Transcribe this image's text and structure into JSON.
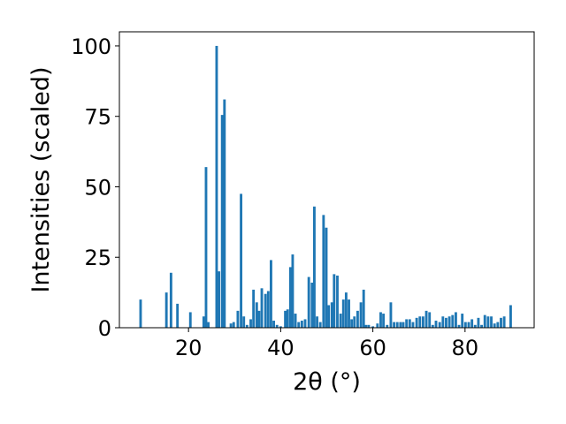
{
  "chart_data": {
    "type": "bar",
    "title": "",
    "xlabel": "2θ (°)",
    "ylabel": "Intensities (scaled)",
    "xlim": [
      5,
      95
    ],
    "ylim": [
      0,
      105
    ],
    "xticks": [
      20,
      40,
      60,
      80
    ],
    "yticks": [
      0,
      25,
      50,
      75,
      100
    ],
    "grid": false,
    "bar_color": "#1f77b4",
    "bar_width": 0.55,
    "x": [
      9.6,
      15.2,
      16.2,
      17.6,
      20.4,
      23.3,
      23.8,
      24.3,
      26.1,
      26.6,
      27.3,
      27.8,
      29.2,
      29.8,
      30.7,
      31.4,
      32.0,
      32.7,
      33.5,
      34.1,
      34.8,
      35.3,
      35.9,
      36.7,
      37.3,
      37.9,
      38.5,
      39.2,
      40.0,
      41.0,
      41.5,
      42.1,
      42.6,
      43.2,
      43.9,
      44.6,
      45.3,
      46.1,
      46.8,
      47.3,
      47.9,
      48.6,
      49.3,
      49.9,
      50.4,
      51.1,
      51.6,
      52.3,
      53.0,
      53.6,
      54.2,
      54.8,
      55.4,
      56.0,
      56.7,
      57.4,
      58.0,
      58.5,
      59.1,
      60.0,
      61.0,
      61.7,
      62.3,
      63.1,
      63.9,
      64.6,
      65.3,
      66.0,
      66.6,
      67.3,
      68.0,
      68.7,
      69.5,
      70.2,
      70.9,
      71.6,
      72.3,
      73.0,
      73.7,
      74.5,
      75.2,
      75.9,
      76.6,
      77.3,
      78.0,
      78.7,
      79.4,
      80.1,
      80.8,
      81.5,
      82.2,
      82.9,
      83.6,
      84.3,
      85.0,
      85.7,
      86.4,
      87.1,
      87.8,
      88.5,
      89.9
    ],
    "values": [
      10,
      12.5,
      19.5,
      8.5,
      5.5,
      4,
      57,
      2,
      100,
      20,
      75.5,
      81,
      1.5,
      2,
      6,
      47.5,
      4,
      1,
      3,
      13.5,
      9,
      6,
      14,
      12,
      13,
      24,
      2.5,
      1,
      0.5,
      6,
      6.5,
      21.5,
      26,
      5,
      2,
      2.5,
      3,
      18,
      16,
      43,
      4,
      2,
      40,
      35.5,
      8,
      9,
      19,
      18.5,
      5,
      10,
      12.5,
      10,
      3,
      4,
      6,
      9,
      13.5,
      1,
      1,
      0.5,
      1.5,
      5.5,
      5,
      1,
      9,
      2,
      2,
      2,
      2,
      3,
      3,
      2,
      3.5,
      4,
      4,
      6,
      5.5,
      1,
      2.5,
      2,
      4,
      3.5,
      4,
      4.5,
      5.5,
      1,
      5,
      2,
      2,
      3,
      1,
      3.5,
      1,
      4.5,
      4,
      4,
      1.5,
      2,
      3.5,
      4,
      8
    ]
  }
}
